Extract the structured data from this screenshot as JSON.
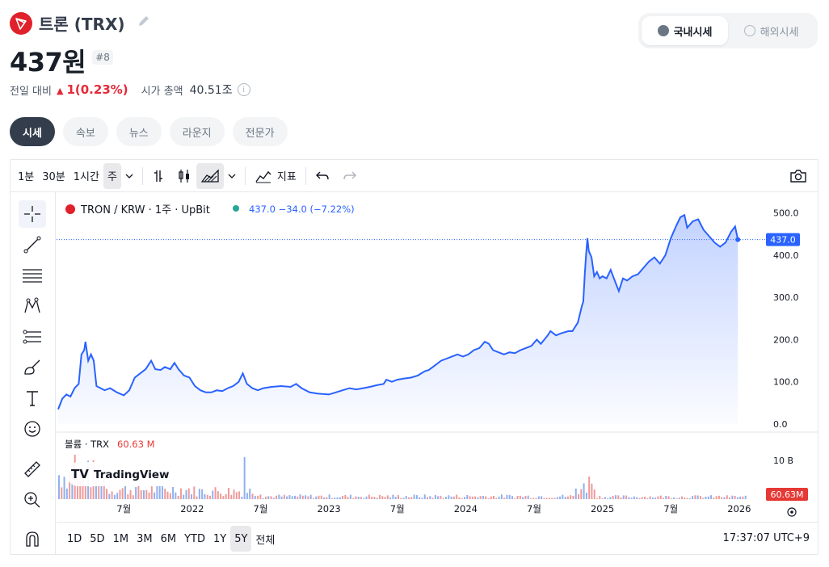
{
  "header": {
    "coin_name": "트론 (TRX)",
    "price": "437원",
    "rank": "#8",
    "change_label": "전일 대비",
    "change_value": "1(0.23%)",
    "market_cap_label": "시가 총액",
    "market_cap_value": "40.51조",
    "info_icon": "i"
  },
  "market_toggle": {
    "domestic": "국내시세",
    "overseas": "해외시세"
  },
  "tabs": [
    "시세",
    "속보",
    "뉴스",
    "라운지",
    "전문가"
  ],
  "toolbar": {
    "intervals": [
      "1분",
      "30분",
      "1시간",
      "주"
    ],
    "indicators_label": "지표"
  },
  "legend": {
    "symbol": "TRON / KRW · 1주 · UpBit",
    "values": "437.0  −34.0 (−7.22%)",
    "volume_label": "볼륨 · TRX",
    "volume_value": "60.63 M"
  },
  "price_tag": "437.0",
  "volume_tag": "60.63M",
  "watermark": "TradingView",
  "range_buttons": [
    "1D",
    "5D",
    "1M",
    "3M",
    "6M",
    "YTD",
    "1Y",
    "5Y",
    "전체"
  ],
  "timezone": "17:37:07 UTC+9",
  "colors": {
    "line": "#2962ff",
    "up": "#e42939",
    "vol_up": "#ef9a9a",
    "vol_down": "#90b0f0",
    "tag": "#2962ff",
    "vol_tag": "#e53935"
  },
  "chart_data": {
    "type": "area",
    "title": "TRON / KRW · 1주 · UpBit",
    "yticks": [
      0,
      100,
      200,
      300,
      400,
      500
    ],
    "ytick_labels": [
      "0.0",
      "100.0",
      "200.0",
      "300.0",
      "400.0",
      "500.0"
    ],
    "ylim": [
      0,
      530
    ],
    "xticks": [
      "7월",
      "2022",
      "7월",
      "2023",
      "7월",
      "2024",
      "7월",
      "2025",
      "7월",
      "2026"
    ],
    "x_range": [
      2021.02,
      2026.06
    ],
    "xtick_positions": [
      2021.5,
      2022.0,
      2022.5,
      2023.0,
      2023.5,
      2024.0,
      2024.5,
      2025.0,
      2025.5,
      2026.0
    ],
    "series": [
      {
        "values": [
          [
            2021.02,
            35
          ],
          [
            2021.05,
            60
          ],
          [
            2021.08,
            70
          ],
          [
            2021.11,
            65
          ],
          [
            2021.14,
            85
          ],
          [
            2021.17,
            95
          ],
          [
            2021.19,
            165
          ],
          [
            2021.21,
            175
          ],
          [
            2021.22,
            195
          ],
          [
            2021.24,
            150
          ],
          [
            2021.26,
            165
          ],
          [
            2021.28,
            150
          ],
          [
            2021.3,
            90
          ],
          [
            2021.33,
            85
          ],
          [
            2021.36,
            80
          ],
          [
            2021.4,
            85
          ],
          [
            2021.45,
            75
          ],
          [
            2021.5,
            68
          ],
          [
            2021.54,
            80
          ],
          [
            2021.58,
            110
          ],
          [
            2021.62,
            120
          ],
          [
            2021.66,
            130
          ],
          [
            2021.7,
            150
          ],
          [
            2021.73,
            130
          ],
          [
            2021.77,
            128
          ],
          [
            2021.8,
            135
          ],
          [
            2021.84,
            130
          ],
          [
            2021.87,
            145
          ],
          [
            2021.9,
            130
          ],
          [
            2021.94,
            115
          ],
          [
            2021.98,
            110
          ],
          [
            2022.02,
            90
          ],
          [
            2022.06,
            80
          ],
          [
            2022.1,
            75
          ],
          [
            2022.14,
            75
          ],
          [
            2022.18,
            80
          ],
          [
            2022.22,
            78
          ],
          [
            2022.26,
            85
          ],
          [
            2022.3,
            90
          ],
          [
            2022.34,
            100
          ],
          [
            2022.37,
            120
          ],
          [
            2022.4,
            95
          ],
          [
            2022.44,
            85
          ],
          [
            2022.48,
            80
          ],
          [
            2022.52,
            85
          ],
          [
            2022.58,
            88
          ],
          [
            2022.65,
            90
          ],
          [
            2022.72,
            88
          ],
          [
            2022.76,
            95
          ],
          [
            2022.8,
            85
          ],
          [
            2022.86,
            75
          ],
          [
            2022.92,
            72
          ],
          [
            2023.0,
            70
          ],
          [
            2023.05,
            75
          ],
          [
            2023.1,
            80
          ],
          [
            2023.15,
            85
          ],
          [
            2023.2,
            82
          ],
          [
            2023.25,
            85
          ],
          [
            2023.3,
            88
          ],
          [
            2023.35,
            92
          ],
          [
            2023.4,
            95
          ],
          [
            2023.42,
            105
          ],
          [
            2023.46,
            100
          ],
          [
            2023.5,
            105
          ],
          [
            2023.55,
            108
          ],
          [
            2023.6,
            110
          ],
          [
            2023.65,
            115
          ],
          [
            2023.7,
            125
          ],
          [
            2023.73,
            128
          ],
          [
            2023.78,
            140
          ],
          [
            2023.82,
            150
          ],
          [
            2023.86,
            155
          ],
          [
            2023.9,
            160
          ],
          [
            2023.94,
            165
          ],
          [
            2023.98,
            160
          ],
          [
            2024.02,
            165
          ],
          [
            2024.06,
            175
          ],
          [
            2024.1,
            180
          ],
          [
            2024.14,
            195
          ],
          [
            2024.17,
            190
          ],
          [
            2024.2,
            175
          ],
          [
            2024.24,
            170
          ],
          [
            2024.28,
            165
          ],
          [
            2024.32,
            170
          ],
          [
            2024.36,
            168
          ],
          [
            2024.4,
            175
          ],
          [
            2024.44,
            180
          ],
          [
            2024.48,
            185
          ],
          [
            2024.52,
            200
          ],
          [
            2024.55,
            190
          ],
          [
            2024.6,
            210
          ],
          [
            2024.62,
            220
          ],
          [
            2024.66,
            210
          ],
          [
            2024.7,
            215
          ],
          [
            2024.75,
            220
          ],
          [
            2024.78,
            220
          ],
          [
            2024.82,
            240
          ],
          [
            2024.85,
            280
          ],
          [
            2024.86,
            290
          ],
          [
            2024.87,
            350
          ],
          [
            2024.88,
            400
          ],
          [
            2024.89,
            440
          ],
          [
            2024.9,
            410
          ],
          [
            2024.92,
            395
          ],
          [
            2024.94,
            350
          ],
          [
            2024.96,
            360
          ],
          [
            2024.98,
            345
          ],
          [
            2025.0,
            350
          ],
          [
            2025.03,
            345
          ],
          [
            2025.06,
            365
          ],
          [
            2025.09,
            340
          ],
          [
            2025.12,
            315
          ],
          [
            2025.15,
            345
          ],
          [
            2025.18,
            340
          ],
          [
            2025.22,
            350
          ],
          [
            2025.26,
            355
          ],
          [
            2025.3,
            370
          ],
          [
            2025.34,
            385
          ],
          [
            2025.38,
            395
          ],
          [
            2025.42,
            380
          ],
          [
            2025.46,
            400
          ],
          [
            2025.5,
            440
          ],
          [
            2025.52,
            455
          ],
          [
            2025.54,
            470
          ],
          [
            2025.57,
            490
          ],
          [
            2025.6,
            495
          ],
          [
            2025.62,
            465
          ],
          [
            2025.66,
            480
          ],
          [
            2025.7,
            485
          ],
          [
            2025.74,
            460
          ],
          [
            2025.78,
            445
          ],
          [
            2025.82,
            430
          ],
          [
            2025.86,
            420
          ],
          [
            2025.9,
            430
          ],
          [
            2025.94,
            455
          ],
          [
            2025.97,
            468
          ],
          [
            2025.99,
            437
          ]
        ]
      }
    ],
    "volume": {
      "unit": "TRX",
      "ytick_labels": [
        "10 B"
      ],
      "note": "weekly volume bars, larger in 2021 and late 2024"
    }
  }
}
